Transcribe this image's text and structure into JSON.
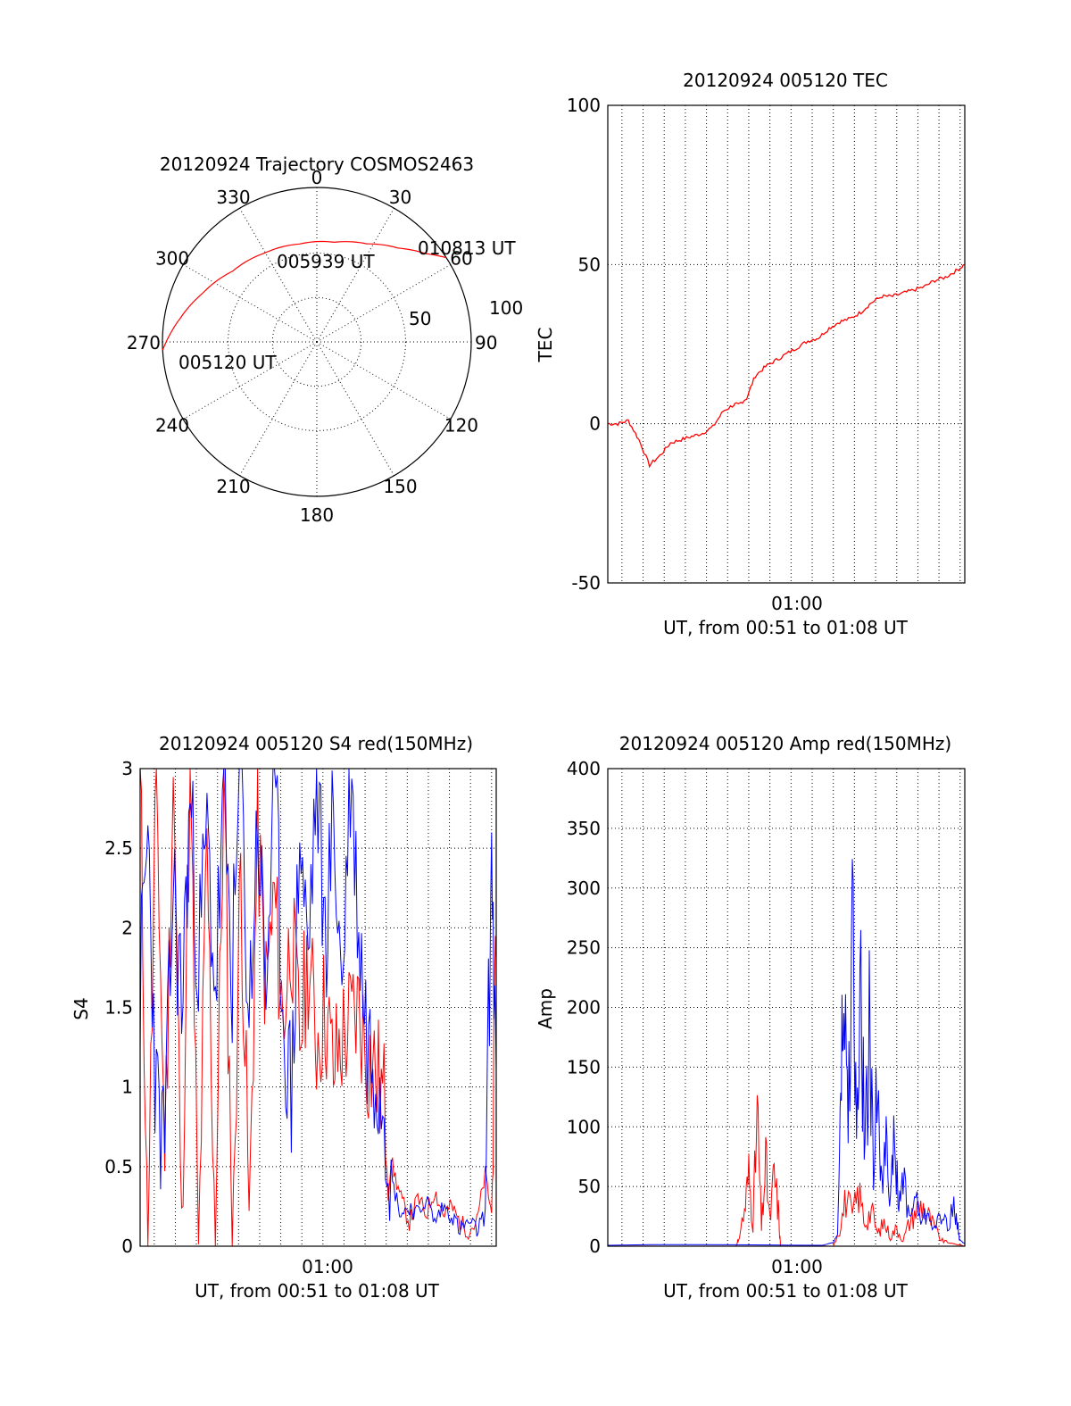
{
  "colors": {
    "red": "#ff0000",
    "blue": "#0000ff",
    "axis": "#000000",
    "background": "#ffffff"
  },
  "chart_data": [
    {
      "type": "polar",
      "title": "20120924 Trajectory COSMOS2463",
      "angle_labels": [
        "0",
        "30",
        "60",
        "90",
        "120",
        "150",
        "180",
        "210",
        "240",
        "270",
        "300",
        "330"
      ],
      "radial_tick_labels": [
        "50",
        "100"
      ],
      "rlim": [
        0,
        100
      ],
      "grid": true,
      "series": [
        {
          "color": "#ff0000",
          "points": [
            {
              "azimuth": 267,
              "radius": 87
            },
            {
              "azimuth": 280,
              "radius": 78
            },
            {
              "azimuth": 293,
              "radius": 70
            },
            {
              "azimuth": 310,
              "radius": 62
            },
            {
              "azimuth": 330,
              "radius": 58
            },
            {
              "azimuth": 350,
              "radius": 56
            },
            {
              "azimuth": 10,
              "radius": 57
            },
            {
              "azimuth": 27,
              "radius": 62
            },
            {
              "azimuth": 41,
              "radius": 70
            },
            {
              "azimuth": 51,
              "radius": 79
            },
            {
              "azimuth": 57,
              "radius": 87
            }
          ]
        }
      ],
      "annotations": [
        {
          "text": "005120 UT",
          "azimuth": 268,
          "radius": 87
        },
        {
          "text": "005939 UT",
          "azimuth": 350,
          "radius": 56
        },
        {
          "text": "010813 UT",
          "azimuth": 57,
          "radius": 87
        }
      ]
    },
    {
      "type": "line",
      "title": "20120924 005120 TEC",
      "xlabel": "UT, from 00:51 to 01:08 UT",
      "ylabel": "TEC",
      "xlim_minutes": [
        51.33,
        68.22
      ],
      "ylim": [
        -50,
        100
      ],
      "x_ticks": [
        {
          "minute": 60,
          "label": "01:00"
        }
      ],
      "y_ticks": [
        "-50",
        "0",
        "50",
        "100"
      ],
      "grid": true,
      "series": [
        {
          "color": "#ff0000",
          "x_minutes": [
            51.33,
            51.8,
            52.3,
            52.8,
            53.3,
            53.8,
            54.3,
            54.8,
            55.3,
            55.8,
            56.3,
            56.8,
            57.3,
            57.5,
            57.9,
            58.3,
            58.8,
            59.3,
            59.8,
            60.3,
            60.8,
            61.3,
            61.8,
            62.3,
            62.8,
            63.3,
            63.8,
            64.3,
            64.8,
            65.3,
            65.8,
            66.3,
            66.8,
            67.3,
            67.8,
            68.22
          ],
          "values": [
            0,
            0,
            1,
            -5,
            -13,
            -10,
            -6,
            -5,
            -4,
            -3,
            -1,
            4,
            6,
            6,
            8,
            15,
            18,
            20,
            22,
            24,
            26,
            27,
            30,
            32,
            33,
            35,
            38,
            40,
            40,
            41,
            42,
            43,
            45,
            46,
            48,
            50
          ]
        }
      ]
    },
    {
      "type": "line",
      "title": "20120924 005120 S4 red(150MHz)",
      "xlabel": "UT, from 00:51 to 01:08 UT",
      "ylabel": "S4",
      "xlim_minutes": [
        51.33,
        68.22
      ],
      "ylim": [
        0,
        3
      ],
      "x_ticks": [
        {
          "minute": 60,
          "label": "01:00"
        }
      ],
      "y_ticks": [
        "0",
        "0.5",
        "1",
        "1.5",
        "2",
        "2.5",
        "3"
      ],
      "grid": true,
      "series": [
        {
          "color": "#ff0000",
          "x_minutes": [
            51.33,
            51.7,
            52.1,
            52.5,
            52.9,
            53.3,
            53.7,
            54.1,
            54.5,
            54.9,
            55.3,
            55.7,
            56.1,
            56.5,
            56.9,
            57.3,
            57.7,
            58.1,
            58.5,
            58.9,
            59.3,
            59.7,
            60.1,
            60.5,
            60.9,
            61.3,
            61.7,
            62.1,
            62.5,
            62.9,
            63.3,
            63.7,
            64.1,
            64.5,
            64.9,
            65.3,
            65.7,
            66.1,
            66.5,
            66.9,
            67.3,
            67.7,
            68.0,
            68.22
          ],
          "values": [
            3,
            0,
            3,
            0.5,
            3,
            0.2,
            3,
            0,
            2.5,
            0,
            3,
            0,
            2.4,
            0.2,
            2.6,
            1.6,
            2.2,
            1.4,
            2.0,
            1.3,
            1.8,
            1.3,
            1.5,
            1.1,
            1.3,
            1.4,
            1.5,
            1.2,
            1.1,
            0.9,
            0.5,
            0.3,
            0.15,
            0.3,
            0.2,
            0.35,
            0.2,
            0.25,
            0.15,
            0.1,
            0.15,
            0.45,
            0.2,
            1.8
          ]
        },
        {
          "color": "#0000ff",
          "x_minutes": [
            51.33,
            51.7,
            52.1,
            52.5,
            52.9,
            53.3,
            53.7,
            54.1,
            54.5,
            54.9,
            55.3,
            55.7,
            56.1,
            56.5,
            56.9,
            57.3,
            57.7,
            58.1,
            58.5,
            58.9,
            59.3,
            59.7,
            60.1,
            60.5,
            60.9,
            61.3,
            61.7,
            62.1,
            62.5,
            62.9,
            63.3,
            63.7,
            64.1,
            64.5,
            64.9,
            65.3,
            65.7,
            66.1,
            66.5,
            66.9,
            67.3,
            67.7,
            68.0,
            68.22
          ],
          "values": [
            1.6,
            2.6,
            0.9,
            0.6,
            2.3,
            1.5,
            2.8,
            1.8,
            2.6,
            1.6,
            2.8,
            1.7,
            3,
            1.4,
            2.7,
            1.6,
            3,
            1.5,
            0.9,
            2.6,
            1.8,
            3,
            1.9,
            2.7,
            1.6,
            3,
            2.0,
            1.3,
            1.2,
            1.0,
            0.4,
            0.2,
            0.25,
            0.2,
            0.3,
            0.15,
            0.25,
            0.2,
            0.1,
            0.15,
            0.1,
            0.2,
            2.5,
            1.1
          ]
        }
      ]
    },
    {
      "type": "line",
      "title": "20120924 005120 Amp red(150MHz)",
      "xlabel": "UT, from 00:51 to 01:08 UT",
      "ylabel": "Amp",
      "xlim_minutes": [
        51.33,
        68.22
      ],
      "ylim": [
        0,
        400
      ],
      "x_ticks": [
        {
          "minute": 60,
          "label": "01:00"
        }
      ],
      "y_ticks": [
        "0",
        "50",
        "100",
        "150",
        "200",
        "250",
        "300",
        "350",
        "400"
      ],
      "grid": true,
      "series": [
        {
          "color": "#ff0000",
          "x_minutes": [
            51.33,
            57.4,
            57.5,
            57.8,
            58.0,
            58.2,
            58.4,
            58.6,
            58.8,
            59.0,
            59.2,
            59.4,
            59.5,
            61.0,
            62.0,
            62.3,
            62.6,
            62.9,
            63.2,
            63.5,
            63.8,
            64.1,
            64.4,
            64.7,
            65.0,
            65.3,
            65.6,
            65.9,
            66.2,
            66.5,
            66.8,
            67.1,
            67.4,
            67.7,
            68.0,
            68.22
          ],
          "values": [
            0,
            0,
            5,
            30,
            60,
            20,
            110,
            15,
            70,
            20,
            60,
            30,
            0,
            0,
            0,
            15,
            40,
            25,
            45,
            20,
            30,
            10,
            20,
            8,
            15,
            5,
            20,
            30,
            35,
            25,
            15,
            5,
            3,
            2,
            1,
            0
          ]
        },
        {
          "color": "#0000ff",
          "x_minutes": [
            51.33,
            61.5,
            62.0,
            62.2,
            62.35,
            62.5,
            62.7,
            62.9,
            63.1,
            63.3,
            63.5,
            63.7,
            63.9,
            64.1,
            64.3,
            64.5,
            64.7,
            64.9,
            65.1,
            65.3,
            65.6,
            65.9,
            66.2,
            66.5,
            66.8,
            67.1,
            67.4,
            67.7,
            67.9,
            68.0,
            68.22
          ],
          "values": [
            1,
            1,
            3,
            10,
            120,
            210,
            100,
            270,
            90,
            200,
            80,
            180,
            60,
            150,
            45,
            120,
            35,
            90,
            30,
            60,
            25,
            40,
            20,
            30,
            15,
            25,
            20,
            30,
            15,
            5,
            2
          ]
        }
      ]
    }
  ]
}
